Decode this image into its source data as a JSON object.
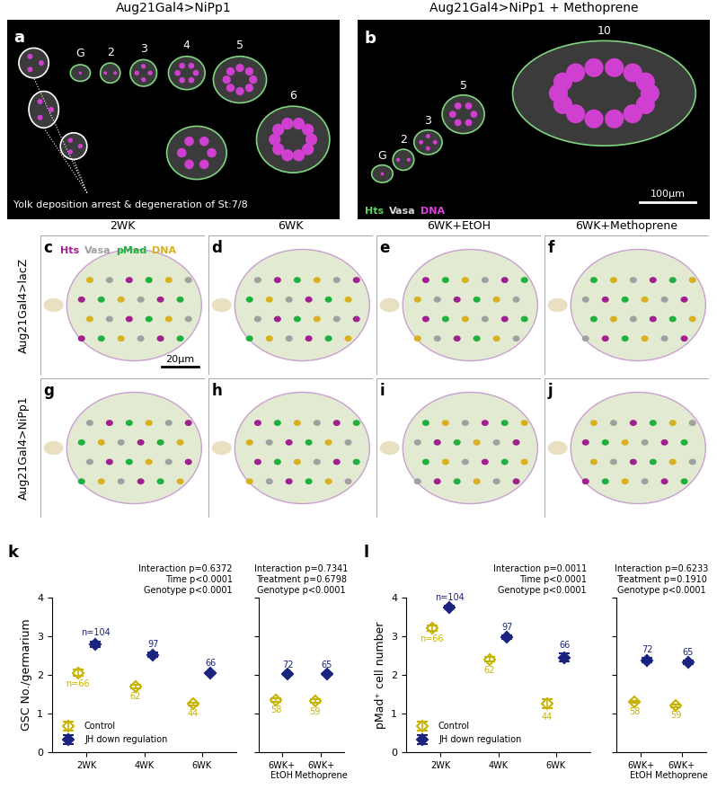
{
  "image_panels": {
    "a": {
      "letter": "a",
      "title": "Aug21Gal4>NiPp1",
      "stage_labels": [
        "G",
        "2",
        "3",
        "4",
        "5",
        "6"
      ],
      "annotation": "Yolk deposition arrest & degeneration of St:7/8"
    },
    "b": {
      "letter": "b",
      "title": "Aug21Gal4>NiPp1 + Methoprene",
      "stage_labels": [
        "G",
        "2",
        "3",
        "5",
        "10"
      ],
      "stain_legend": [
        {
          "name": "Hts",
          "color": "#5fd35f"
        },
        {
          "name": "Vasa",
          "color": "#d8d8d8"
        },
        {
          "name": "DNA",
          "color": "#e040e0"
        }
      ],
      "scale_bar": "100μm"
    },
    "grid": {
      "letters": [
        "c",
        "d",
        "e",
        "f",
        "g",
        "h",
        "i",
        "j"
      ],
      "column_titles": [
        "2WK",
        "6WK",
        "6WK+EtOH",
        "6WK+Methoprene"
      ],
      "row_labels": [
        "Aug21Gal4>lacZ",
        "Aug21Gal4>NiPp1"
      ],
      "stain_legend": [
        {
          "name": "Hts",
          "color": "#a0208f"
        },
        {
          "name": "Vasa",
          "color": "#a0a0a0"
        },
        {
          "name": "pMad",
          "color": "#20b040"
        },
        {
          "name": "DNA",
          "color": "#d8b020"
        }
      ],
      "scale_bar": "20μm"
    }
  },
  "chart_data": [
    {
      "type": "scatter",
      "letter": "k",
      "y_label": "GSC No./germarium",
      "stats": [
        "Interaction p=0.6372",
        "Time p<0.0001",
        "Genotype p<0.0001"
      ],
      "categories": [
        "2WK",
        "4WK",
        "6WK"
      ],
      "series": [
        {
          "name": "Control",
          "color": "#c8b400",
          "marker": "open_diamond",
          "values": [
            2.05,
            1.7,
            1.25
          ],
          "errors": [
            0.08,
            0.05,
            0.04
          ],
          "n_labels": [
            "n=66",
            "62",
            "44"
          ]
        },
        {
          "name": "JH down regulation",
          "color": "#1a237e",
          "marker": "diamond",
          "values": [
            2.8,
            2.52,
            2.05
          ],
          "errors": [
            0.07,
            0.06,
            0.03
          ],
          "n_labels": [
            "n=104",
            "97",
            "66"
          ]
        }
      ],
      "ylim": [
        0,
        4
      ],
      "yticks": [
        0,
        1,
        2,
        3,
        4
      ],
      "legend": "lower left"
    },
    {
      "type": "scatter",
      "stats": [
        "Interaction p=0.7341",
        "Treatment p=0.6798",
        "Genotype p<0.0001"
      ],
      "categories": [
        "6WK+\nEtOH",
        "6WK+\nMethoprene"
      ],
      "series": [
        {
          "color": "#c8b400",
          "marker": "open_diamond",
          "values": [
            1.35,
            1.32
          ],
          "errors": [
            0.04,
            0.05
          ],
          "n_labels": [
            "58",
            "59"
          ]
        },
        {
          "color": "#1a237e",
          "marker": "diamond",
          "values": [
            2.02,
            2.02
          ],
          "errors": [
            0.03,
            0.02
          ],
          "n_labels": [
            "72",
            "65"
          ]
        }
      ],
      "ylim": [
        0,
        4
      ],
      "yticks": [
        0,
        1,
        2,
        3,
        4
      ],
      "tick_labels": "x"
    },
    {
      "type": "scatter",
      "letter": "l",
      "y_label": "pMad⁺ cell number",
      "stats": [
        "Interaction p=0.0011",
        "Time p<0.0001",
        "Genotype p<0.0001"
      ],
      "categories": [
        "2WK",
        "4WK",
        "6WK"
      ],
      "series": [
        {
          "name": "Control",
          "color": "#c8b400",
          "marker": "open_diamond",
          "values": [
            3.22,
            2.4,
            1.25
          ],
          "errors": [
            0.07,
            0.06,
            0.12
          ],
          "n_labels": [
            "n=66",
            "62",
            "44"
          ]
        },
        {
          "name": "JH down regulation",
          "color": "#1a237e",
          "marker": "diamond",
          "values": [
            3.75,
            2.98,
            2.45
          ],
          "errors": [
            0.03,
            0.04,
            0.1
          ],
          "n_labels": [
            "n=104",
            "97",
            "66"
          ]
        }
      ],
      "ylim": [
        0,
        4
      ],
      "yticks": [
        0,
        1,
        2,
        3,
        4
      ],
      "legend": "lower left"
    },
    {
      "type": "scatter",
      "stats": [
        "Interaction p=0.6233",
        "Treatment p=0.1910",
        "Genotype p<0.0001"
      ],
      "categories": [
        "6WK+\nEtOH",
        "6WK+\nMethoprene"
      ],
      "series": [
        {
          "color": "#c8b400",
          "marker": "open_diamond",
          "values": [
            1.3,
            1.2
          ],
          "errors": [
            0.03,
            0.04
          ],
          "n_labels": [
            "58",
            "59"
          ]
        },
        {
          "color": "#1a237e",
          "marker": "diamond",
          "values": [
            2.38,
            2.32
          ],
          "errors": [
            0.06,
            0.05
          ],
          "n_labels": [
            "72",
            "65"
          ]
        }
      ],
      "ylim": [
        0,
        4
      ],
      "yticks": [
        0,
        1,
        2,
        3,
        4
      ],
      "tick_labels": "x"
    }
  ]
}
